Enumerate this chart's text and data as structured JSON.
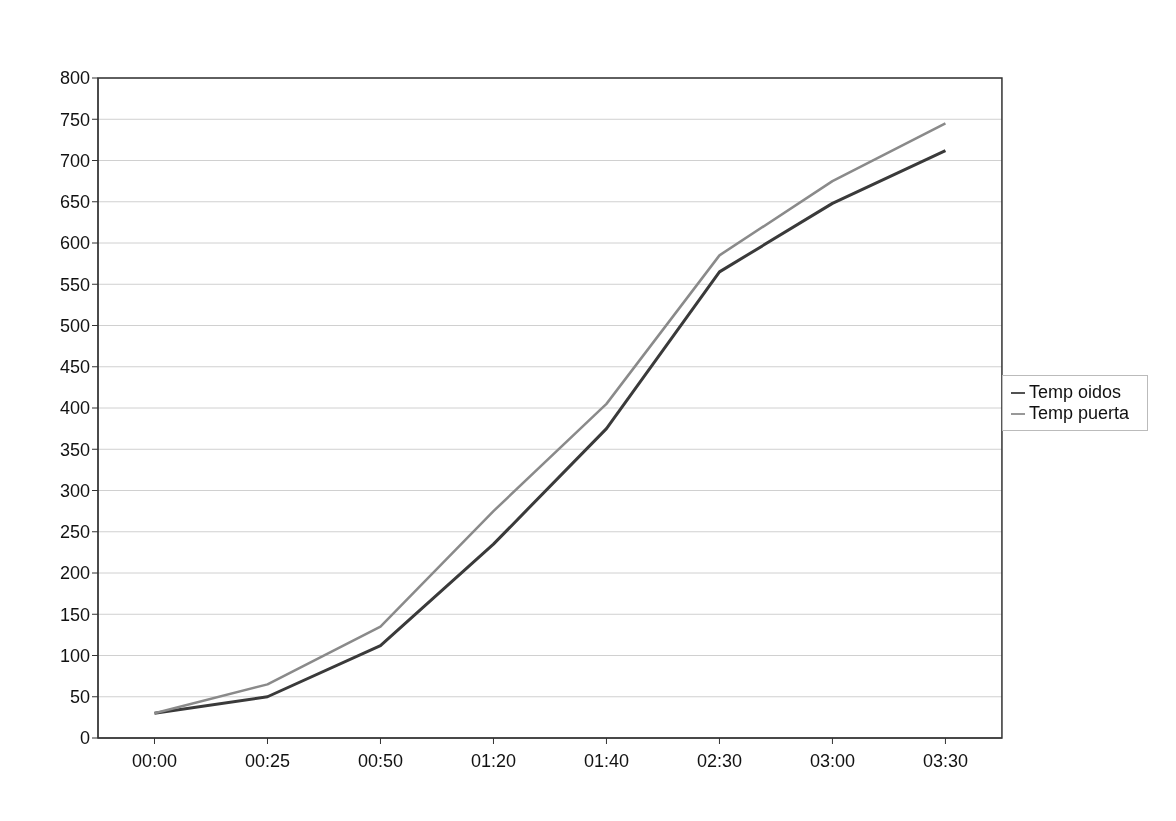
{
  "chart_data": {
    "type": "line",
    "categories": [
      "00:00",
      "00:25",
      "00:50",
      "01:20",
      "01:40",
      "02:30",
      "03:00",
      "03:30"
    ],
    "series": [
      {
        "name": "Temp oidos",
        "color": "#3a3a3a",
        "values": [
          30,
          50,
          112,
          235,
          375,
          565,
          648,
          712
        ]
      },
      {
        "name": "Temp puerta",
        "color": "#8a8a8a",
        "values": [
          30,
          65,
          135,
          275,
          405,
          585,
          675,
          745
        ]
      }
    ],
    "ylim": [
      0,
      800
    ],
    "yticks": [
      0,
      50,
      100,
      150,
      200,
      250,
      300,
      350,
      400,
      450,
      500,
      550,
      600,
      650,
      700,
      750,
      800
    ],
    "grid": "y",
    "legend": "right",
    "marker": "none",
    "line_style": "solid"
  }
}
